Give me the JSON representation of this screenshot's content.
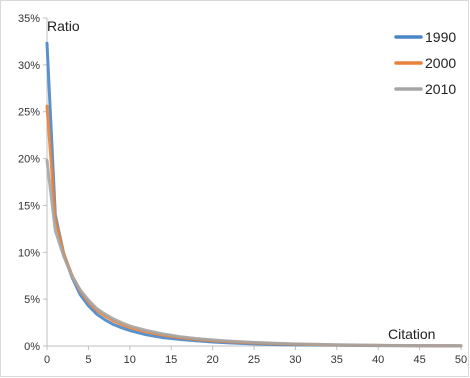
{
  "chart_data": {
    "type": "line",
    "title": "",
    "xlabel": "Citation",
    "ylabel": "Ratio",
    "xlim": [
      0,
      50
    ],
    "ylim": [
      0,
      35
    ],
    "x_ticks": [
      "0",
      "5",
      "10",
      "15",
      "20",
      "25",
      "30",
      "35",
      "40",
      "45",
      "50"
    ],
    "y_ticks": [
      "0%",
      "5%",
      "10%",
      "15%",
      "20%",
      "25%",
      "30%",
      "35%"
    ],
    "grid": false,
    "legend_position": "top-right",
    "x": [
      0,
      1,
      2,
      3,
      4,
      5,
      6,
      7,
      8,
      9,
      10,
      12,
      14,
      16,
      18,
      20,
      22,
      25,
      28,
      30,
      35,
      40,
      45,
      50
    ],
    "series": [
      {
        "name": "1990",
        "color": "#4a86c5",
        "values": [
          32.3,
          14.0,
          9.9,
          7.4,
          5.5,
          4.3,
          3.4,
          2.8,
          2.3,
          1.95,
          1.65,
          1.2,
          0.9,
          0.7,
          0.55,
          0.43,
          0.33,
          0.22,
          0.15,
          0.12,
          0.07,
          0.04,
          0.02,
          0.01
        ]
      },
      {
        "name": "2000",
        "color": "#e8823a",
        "values": [
          25.6,
          13.6,
          9.9,
          7.6,
          5.9,
          4.7,
          3.8,
          3.2,
          2.7,
          2.3,
          1.95,
          1.5,
          1.15,
          0.9,
          0.7,
          0.55,
          0.45,
          0.33,
          0.24,
          0.19,
          0.11,
          0.06,
          0.03,
          0.02
        ]
      },
      {
        "name": "2010",
        "color": "#a5a5a5",
        "values": [
          19.8,
          12.3,
          9.6,
          7.5,
          6.0,
          4.9,
          4.0,
          3.4,
          2.9,
          2.5,
          2.15,
          1.65,
          1.3,
          1.0,
          0.8,
          0.65,
          0.52,
          0.38,
          0.28,
          0.22,
          0.13,
          0.07,
          0.04,
          0.02
        ]
      }
    ]
  }
}
